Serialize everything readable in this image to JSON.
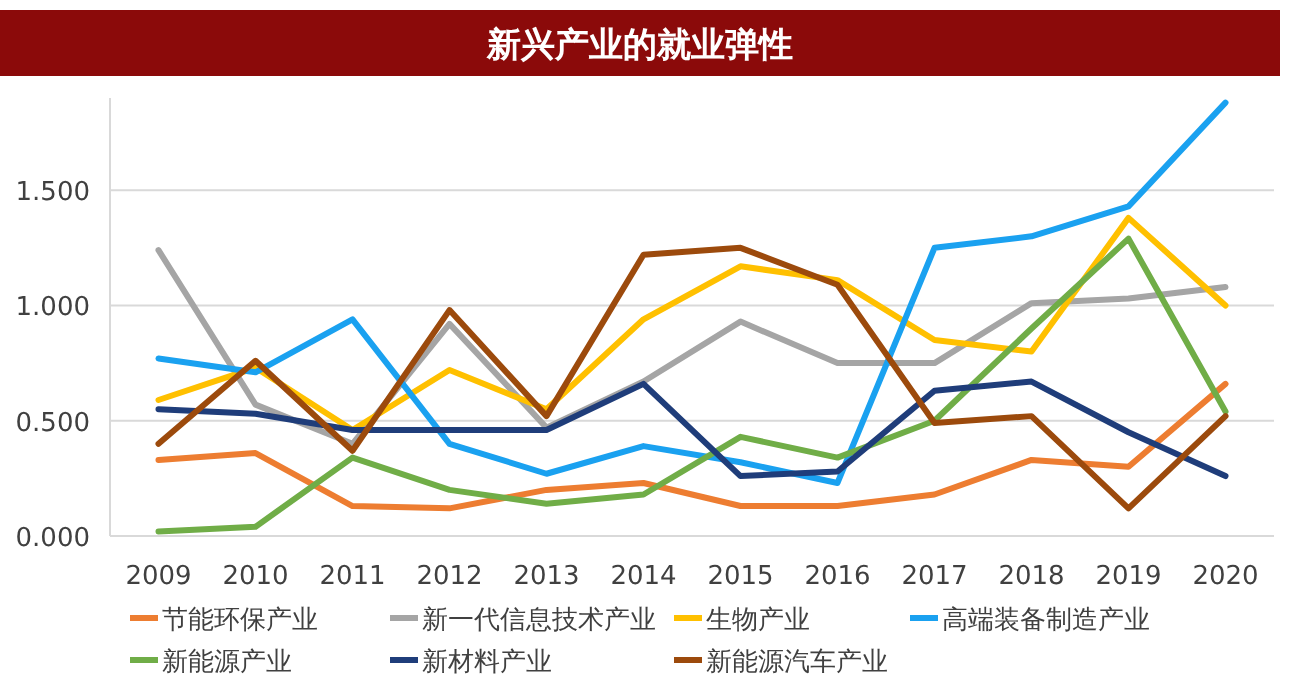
{
  "chart_data": {
    "type": "line",
    "title": "新兴产业的就业弹性",
    "categories": [
      "2009",
      "2010",
      "2011",
      "2012",
      "2013",
      "2014",
      "2015",
      "2016",
      "2017",
      "2018",
      "2019",
      "2020"
    ],
    "ylim": [
      0,
      1.9
    ],
    "yticks": [
      {
        "value": 0,
        "label": "0.000"
      },
      {
        "value": 0.5,
        "label": "0.500"
      },
      {
        "value": 1,
        "label": "1.000"
      },
      {
        "value": 1.5,
        "label": "1.500"
      }
    ],
    "grid": "y",
    "legend": "bottom",
    "marker": "none",
    "line_style": "solid",
    "series": [
      {
        "name": "节能环保产业",
        "color": "#ed7d31",
        "values": [
          0.33,
          0.36,
          0.13,
          0.12,
          0.2,
          0.23,
          0.13,
          0.13,
          0.18,
          0.33,
          0.3,
          0.66
        ]
      },
      {
        "name": "新一代信息技术产业",
        "color": "#a5a5a5",
        "values": [
          1.24,
          0.57,
          0.4,
          0.92,
          0.47,
          0.67,
          0.93,
          0.75,
          0.75,
          1.01,
          1.03,
          1.08
        ]
      },
      {
        "name": "生物产业",
        "color": "#ffc000",
        "values": [
          0.59,
          0.73,
          0.46,
          0.72,
          0.55,
          0.94,
          1.17,
          1.11,
          0.85,
          0.8,
          1.38,
          1.0
        ]
      },
      {
        "name": "高端装备制造产业",
        "color": "#1aa1f0",
        "values": [
          0.77,
          0.71,
          0.94,
          0.4,
          0.27,
          0.39,
          0.32,
          0.23,
          1.25,
          1.3,
          1.43,
          1.88
        ]
      },
      {
        "name": "新能源产业",
        "color": "#70ad47",
        "values": [
          0.02,
          0.04,
          0.34,
          0.2,
          0.14,
          0.18,
          0.43,
          0.34,
          0.5,
          0.9,
          1.29,
          0.54
        ]
      },
      {
        "name": "新材料产业",
        "color": "#1f3d7a",
        "values": [
          0.55,
          0.53,
          0.46,
          0.46,
          0.46,
          0.66,
          0.26,
          0.28,
          0.63,
          0.67,
          0.45,
          0.26
        ]
      },
      {
        "name": "新能源汽车产业",
        "color": "#9c4a0c",
        "values": [
          0.4,
          0.76,
          0.37,
          0.98,
          0.52,
          1.22,
          1.25,
          1.09,
          0.49,
          0.52,
          0.12,
          0.52
        ]
      }
    ]
  }
}
